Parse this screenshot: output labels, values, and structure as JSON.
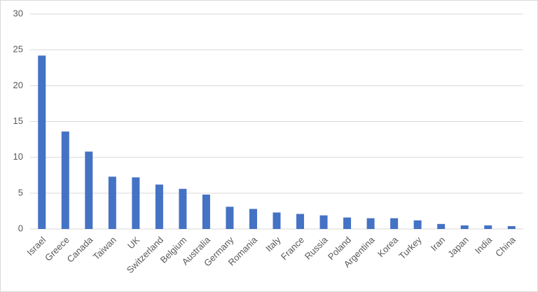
{
  "chart_data": {
    "type": "bar",
    "categories": [
      "Israel",
      "Greece",
      "Canada",
      "Taiwan",
      "UK",
      "Switzerland",
      "Belgium",
      "Australia",
      "Germany",
      "Romania",
      "Italy",
      "France",
      "Russia",
      "Poland",
      "Argentina",
      "Korea",
      "Turkey",
      "Iran",
      "Japan",
      "India",
      "China"
    ],
    "values": [
      24.2,
      13.6,
      10.8,
      7.3,
      7.2,
      6.2,
      5.6,
      4.8,
      3.1,
      2.8,
      2.3,
      2.1,
      1.9,
      1.6,
      1.5,
      1.5,
      1.2,
      0.7,
      0.5,
      0.5,
      0.4
    ],
    "color": "#4472c4",
    "ylim": [
      0,
      30
    ],
    "yticks": [
      0,
      5,
      10,
      15,
      20,
      25,
      30
    ],
    "grid": true
  }
}
